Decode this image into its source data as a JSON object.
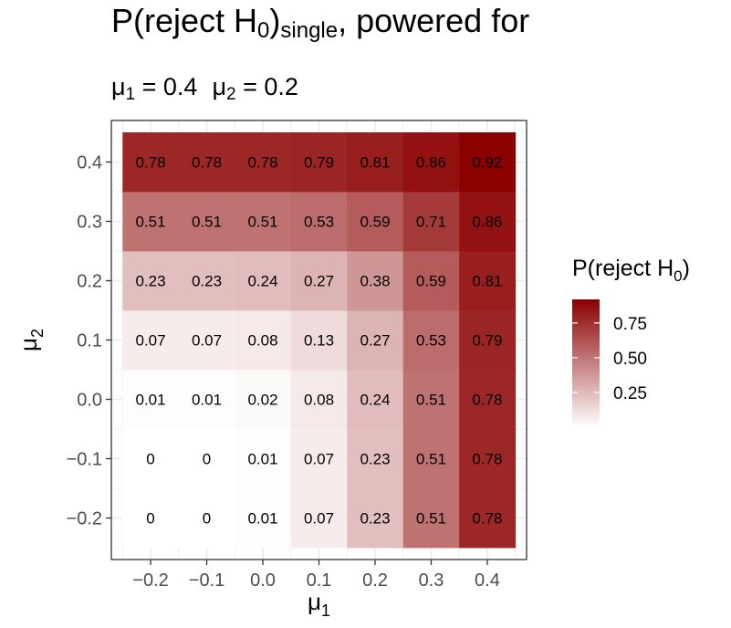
{
  "title": {
    "prefix": "P(reject H",
    "sub": "0",
    "mid": ")",
    "sub2": "single",
    "suffix": ", powered for"
  },
  "subtitle": {
    "mu1_base": "μ",
    "mu1_sub": "1",
    "mu1_eq": " = 0.4",
    "mu2_base": "μ",
    "mu2_sub": "2",
    "mu2_eq": " = 0.2"
  },
  "colors": {
    "low": "#ffffff",
    "high": "#8b0000",
    "grid": "#ebebeb",
    "panel_border": "#333333"
  },
  "chart_data": {
    "type": "heatmap",
    "title": "P(reject H0)single, powered for μ1 = 0.4 μ2 = 0.2",
    "xlabel": {
      "base": "μ",
      "sub": "1"
    },
    "ylabel": {
      "base": "μ",
      "sub": "2"
    },
    "x": [
      -0.2,
      -0.1,
      0.0,
      0.1,
      0.2,
      0.3,
      0.4
    ],
    "y": [
      -0.2,
      -0.1,
      0.0,
      0.1,
      0.2,
      0.3,
      0.4
    ],
    "x_tick_labels": [
      "−0.2",
      "−0.1",
      "0.0",
      "0.1",
      "0.2",
      "0.3",
      "0.4"
    ],
    "y_tick_labels": [
      "−0.2",
      "−0.1",
      "0.0",
      "0.1",
      "0.2",
      "0.3",
      "0.4"
    ],
    "xlim": [
      -0.27,
      0.47
    ],
    "ylim": [
      -0.27,
      0.47
    ],
    "grid": true,
    "values": [
      [
        0,
        0,
        0.01,
        0.07,
        0.23,
        0.51,
        0.78
      ],
      [
        0,
        0,
        0.01,
        0.07,
        0.23,
        0.51,
        0.78
      ],
      [
        0.01,
        0.01,
        0.02,
        0.08,
        0.24,
        0.51,
        0.78
      ],
      [
        0.07,
        0.07,
        0.08,
        0.13,
        0.27,
        0.53,
        0.79
      ],
      [
        0.23,
        0.23,
        0.24,
        0.27,
        0.38,
        0.59,
        0.81
      ],
      [
        0.51,
        0.51,
        0.51,
        0.53,
        0.59,
        0.71,
        0.86
      ],
      [
        0.78,
        0.78,
        0.78,
        0.79,
        0.81,
        0.86,
        0.92
      ]
    ],
    "labels": [
      [
        "0",
        "0",
        "0.01",
        "0.07",
        "0.23",
        "0.51",
        "0.78"
      ],
      [
        "0",
        "0",
        "0.01",
        "0.07",
        "0.23",
        "0.51",
        "0.78"
      ],
      [
        "0.01",
        "0.01",
        "0.02",
        "0.08",
        "0.24",
        "0.51",
        "0.78"
      ],
      [
        "0.07",
        "0.07",
        "0.08",
        "0.13",
        "0.27",
        "0.53",
        "0.79"
      ],
      [
        "0.23",
        "0.23",
        "0.24",
        "0.27",
        "0.38",
        "0.59",
        "0.81"
      ],
      [
        "0.51",
        "0.51",
        "0.51",
        "0.53",
        "0.59",
        "0.71",
        "0.86"
      ],
      [
        "0.78",
        "0.78",
        "0.78",
        "0.79",
        "0.81",
        "0.86",
        "0.92"
      ]
    ],
    "legend": {
      "title": {
        "prefix": "P(reject H",
        "sub": "0",
        "suffix": ")"
      },
      "position": "right",
      "range": [
        0,
        0.92
      ],
      "breaks": [
        0.25,
        0.5,
        0.75
      ],
      "break_labels": [
        "0.25",
        "0.50",
        "0.75"
      ]
    }
  }
}
